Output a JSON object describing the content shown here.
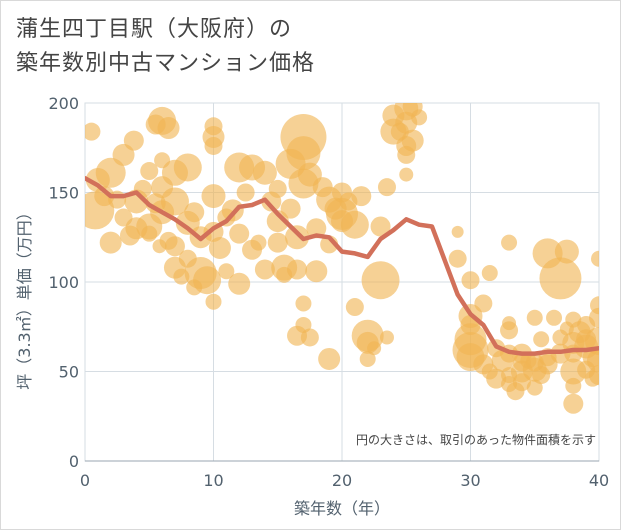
{
  "title": {
    "line1": "蒲生四丁目駅（大阪府）の",
    "line2": "築年数別中古マンション価格"
  },
  "chart_data": {
    "type": "scatter",
    "xlabel": "築年数（年）",
    "ylabel": "坪（3.3㎡）単価（万円）",
    "xlim": [
      0,
      40
    ],
    "ylim": [
      0,
      200
    ],
    "xticks": [
      0,
      10,
      20,
      30,
      40
    ],
    "yticks": [
      0,
      50,
      100,
      150,
      200
    ],
    "grid": true,
    "annotation": "円の大きさは、取引のあった物件面積を示す",
    "colors": {
      "bubble": "#f0b454",
      "line": "#d2705a",
      "grid": "#d6dde3",
      "axis_text": "#52616e"
    },
    "scatter_points": [
      [
        0.5,
        184,
        9
      ],
      [
        0.8,
        140,
        19
      ],
      [
        1,
        157,
        12
      ],
      [
        1.5,
        148,
        10
      ],
      [
        2,
        161,
        15
      ],
      [
        2,
        122,
        11
      ],
      [
        2.5,
        146,
        9
      ],
      [
        3,
        171,
        11
      ],
      [
        3,
        136,
        9
      ],
      [
        3.5,
        126,
        10
      ],
      [
        3.8,
        179,
        10
      ],
      [
        4,
        145,
        12
      ],
      [
        4,
        130,
        11
      ],
      [
        4.5,
        152,
        9
      ],
      [
        5,
        162,
        9
      ],
      [
        5,
        131,
        13
      ],
      [
        5,
        127,
        8
      ],
      [
        5.5,
        188,
        10
      ],
      [
        5.5,
        144,
        10
      ],
      [
        5.8,
        120,
        7
      ],
      [
        6,
        190,
        14
      ],
      [
        6,
        168,
        8
      ],
      [
        6,
        153,
        11
      ],
      [
        6,
        139,
        12
      ],
      [
        6.5,
        186,
        11
      ],
      [
        6.5,
        123,
        9
      ],
      [
        7,
        161,
        13
      ],
      [
        7,
        145,
        14
      ],
      [
        7,
        120,
        10
      ],
      [
        7,
        108,
        11
      ],
      [
        7.5,
        103,
        8
      ],
      [
        8,
        164,
        14
      ],
      [
        8,
        133,
        12
      ],
      [
        8,
        113,
        9
      ],
      [
        8.5,
        139,
        10
      ],
      [
        8.5,
        97,
        8
      ],
      [
        9,
        125,
        11
      ],
      [
        9,
        105,
        16
      ],
      [
        9.5,
        101,
        14
      ],
      [
        10,
        187,
        9
      ],
      [
        10,
        181,
        11
      ],
      [
        10,
        176,
        9
      ],
      [
        10,
        148,
        12
      ],
      [
        10,
        128,
        10
      ],
      [
        10,
        89,
        8
      ],
      [
        10.5,
        119,
        11
      ],
      [
        11,
        136,
        9
      ],
      [
        11,
        106,
        8
      ],
      [
        11.5,
        140,
        11
      ],
      [
        12,
        164,
        15
      ],
      [
        12,
        127,
        10
      ],
      [
        12,
        99,
        11
      ],
      [
        12.5,
        150,
        9
      ],
      [
        13,
        164,
        13
      ],
      [
        13,
        118,
        10
      ],
      [
        13.5,
        122,
        8
      ],
      [
        14,
        161,
        12
      ],
      [
        14,
        107,
        10
      ],
      [
        14.5,
        145,
        10
      ],
      [
        15,
        152,
        9
      ],
      [
        15,
        134,
        11
      ],
      [
        15,
        122,
        10
      ],
      [
        15.5,
        108,
        13
      ],
      [
        15.5,
        104,
        8
      ],
      [
        16,
        166,
        15
      ],
      [
        16,
        141,
        10
      ],
      [
        16.5,
        125,
        12
      ],
      [
        16.5,
        107,
        10
      ],
      [
        16.5,
        70,
        10
      ],
      [
        17,
        181,
        23
      ],
      [
        17,
        172,
        17
      ],
      [
        17,
        155,
        15
      ],
      [
        17,
        76,
        8
      ],
      [
        17,
        88,
        8
      ],
      [
        17.5,
        160,
        12
      ],
      [
        17.5,
        69,
        9
      ],
      [
        18,
        130,
        10
      ],
      [
        18,
        106,
        11
      ],
      [
        18.5,
        153,
        10
      ],
      [
        19,
        146,
        13
      ],
      [
        19,
        121,
        9
      ],
      [
        19,
        57,
        11
      ],
      [
        19.5,
        141,
        11
      ],
      [
        20,
        150,
        10
      ],
      [
        20,
        138,
        16
      ],
      [
        20,
        134,
        11
      ],
      [
        20.5,
        145,
        9
      ],
      [
        21,
        132,
        14
      ],
      [
        21,
        86,
        9
      ],
      [
        21.5,
        148,
        10
      ],
      [
        22,
        70,
        16
      ],
      [
        22,
        66,
        11
      ],
      [
        22,
        57,
        8
      ],
      [
        22.5,
        63,
        7
      ],
      [
        23,
        131,
        10
      ],
      [
        23,
        101,
        19
      ],
      [
        23.5,
        153,
        9
      ],
      [
        23.5,
        69,
        7
      ],
      [
        24,
        193,
        11
      ],
      [
        24,
        184,
        13
      ],
      [
        24.5,
        184,
        9
      ],
      [
        25,
        197,
        12
      ],
      [
        25,
        189,
        11
      ],
      [
        25,
        176,
        10
      ],
      [
        25,
        171,
        9
      ],
      [
        25,
        160,
        7
      ],
      [
        25.5,
        179,
        11
      ],
      [
        25.5,
        198,
        10
      ],
      [
        26,
        192,
        8
      ],
      [
        29,
        128,
        6
      ],
      [
        29,
        113,
        9
      ],
      [
        30,
        101,
        9
      ],
      [
        30,
        81,
        12
      ],
      [
        30,
        76,
        10
      ],
      [
        30,
        68,
        16
      ],
      [
        30,
        62,
        18
      ],
      [
        30,
        58,
        14
      ],
      [
        31,
        88,
        9
      ],
      [
        31,
        54,
        10
      ],
      [
        31.5,
        105,
        8
      ],
      [
        31.5,
        50,
        8
      ],
      [
        32,
        63,
        9
      ],
      [
        32,
        46,
        10
      ],
      [
        32.5,
        56,
        11
      ],
      [
        33,
        122,
        8
      ],
      [
        33,
        77,
        7
      ],
      [
        33,
        73,
        9
      ],
      [
        33,
        60,
        9
      ],
      [
        33,
        48,
        8
      ],
      [
        33,
        43,
        8
      ],
      [
        33.5,
        39,
        9
      ],
      [
        34,
        60,
        10
      ],
      [
        34,
        55,
        9
      ],
      [
        34,
        50,
        11
      ],
      [
        34,
        44,
        9
      ],
      [
        34.5,
        56,
        8
      ],
      [
        35,
        80,
        8
      ],
      [
        35,
        55,
        9
      ],
      [
        35,
        51,
        12
      ],
      [
        35,
        41,
        8
      ],
      [
        35.5,
        68,
        8
      ],
      [
        35.5,
        48,
        9
      ],
      [
        36,
        116,
        15
      ],
      [
        36,
        58,
        9
      ],
      [
        36,
        54,
        10
      ],
      [
        36.5,
        80,
        8
      ],
      [
        37,
        102,
        21
      ],
      [
        37,
        69,
        8
      ],
      [
        37,
        60,
        10
      ],
      [
        37.5,
        117,
        12
      ],
      [
        37.5,
        74,
        7
      ],
      [
        38,
        79,
        8
      ],
      [
        38,
        66,
        11
      ],
      [
        38,
        60,
        9
      ],
      [
        38,
        50,
        13
      ],
      [
        38,
        42,
        8
      ],
      [
        38,
        32,
        10
      ],
      [
        38.5,
        72,
        11
      ],
      [
        39,
        76,
        9
      ],
      [
        39,
        68,
        10
      ],
      [
        39,
        64,
        12
      ],
      [
        39,
        51,
        9
      ],
      [
        39.5,
        58,
        10
      ],
      [
        39.5,
        46,
        8
      ],
      [
        40,
        113,
        8
      ],
      [
        40,
        87,
        9
      ],
      [
        40,
        80,
        10
      ],
      [
        40,
        67,
        14
      ],
      [
        40,
        56,
        12
      ],
      [
        40,
        48,
        10
      ]
    ],
    "average_line": [
      [
        0,
        158
      ],
      [
        1,
        154
      ],
      [
        2,
        148
      ],
      [
        3,
        148
      ],
      [
        4,
        150
      ],
      [
        5,
        143
      ],
      [
        6,
        139
      ],
      [
        7,
        135
      ],
      [
        8,
        130
      ],
      [
        9,
        124
      ],
      [
        10,
        130
      ],
      [
        11,
        134
      ],
      [
        12,
        142
      ],
      [
        13,
        143
      ],
      [
        14,
        146
      ],
      [
        15,
        138
      ],
      [
        16,
        131
      ],
      [
        17,
        124
      ],
      [
        18,
        126
      ],
      [
        19,
        125
      ],
      [
        20,
        117
      ],
      [
        21,
        116
      ],
      [
        22,
        114
      ],
      [
        23,
        124
      ],
      [
        24,
        129
      ],
      [
        25,
        135
      ],
      [
        26,
        132
      ],
      [
        27,
        131
      ],
      [
        28,
        112
      ],
      [
        29,
        93
      ],
      [
        30,
        82
      ],
      [
        31,
        76
      ],
      [
        32,
        64
      ],
      [
        33,
        61
      ],
      [
        34,
        60
      ],
      [
        35,
        60
      ],
      [
        36,
        61
      ],
      [
        37,
        61
      ],
      [
        38,
        62
      ],
      [
        39,
        62
      ],
      [
        40,
        63
      ]
    ]
  }
}
